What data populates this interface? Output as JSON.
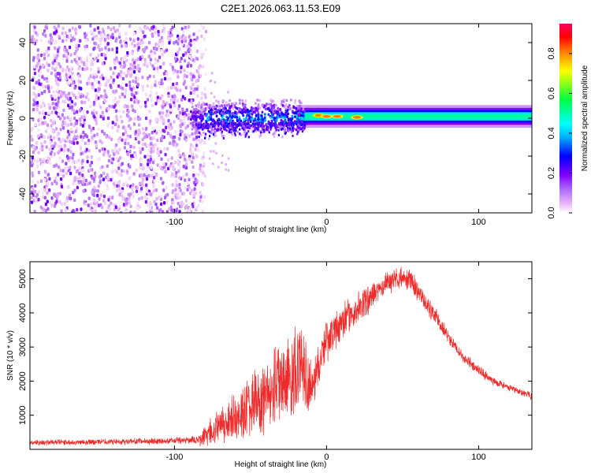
{
  "figure_title": "C2E1.2026.063.11.53.E09",
  "chart_data": [
    {
      "type": "heatmap",
      "title": "C2E1.2026.063.11.53.E09",
      "xlabel": "Height of straight line (km)",
      "ylabel": "Frequency (Hz)",
      "xlim": [
        -195,
        135
      ],
      "ylim": [
        -50,
        50
      ],
      "x_ticks": [
        -100,
        0,
        100
      ],
      "x_tick_labels": [
        "-100",
        "0",
        "100"
      ],
      "y_ticks": [
        -40,
        -20,
        0,
        20,
        40
      ],
      "y_tick_labels": [
        "-40",
        "-20",
        "0",
        "20",
        "40"
      ],
      "colorbar": {
        "label": "Normalized spectral amplitude",
        "range": [
          0.0,
          0.95
        ],
        "ticks": [
          0.0,
          0.2,
          0.4,
          0.6,
          0.8
        ],
        "tick_labels": [
          "0.0",
          "0.2",
          "0.4",
          "0.6",
          "0.8"
        ],
        "colors": [
          "#ffffff",
          "#e8b4f8",
          "#b070ff",
          "#7f00ff",
          "#0000ff",
          "#00ffff",
          "#00ff60",
          "#ffff00",
          "#ff8000",
          "#ff0000",
          "#ff0060"
        ]
      },
      "regions": [
        {
          "name": "noise",
          "x_range": [
            -195,
            -80
          ],
          "freq_range": [
            -50,
            50
          ],
          "amplitude": 0.12
        },
        {
          "name": "transition",
          "x_range": [
            -90,
            -15
          ],
          "freq_range": [
            -10,
            8
          ],
          "amplitude": 0.4
        },
        {
          "name": "signal",
          "x_range": [
            -15,
            135
          ],
          "freq_center": 1,
          "freq_halfwidth": 3,
          "amplitude": 0.5
        },
        {
          "name": "peaks",
          "x": [
            -5,
            0,
            7,
            20
          ],
          "freq": [
            1.5,
            1,
            1,
            0.5
          ],
          "amplitude": 0.85
        }
      ]
    },
    {
      "type": "line",
      "xlabel": "Height of straight line (km)",
      "ylabel": "SNR (10 * v/v)",
      "xlim": [
        -195,
        135
      ],
      "ylim": [
        0,
        5500
      ],
      "x_ticks": [
        -100,
        0,
        100
      ],
      "x_tick_labels": [
        "-100",
        "0",
        "100"
      ],
      "y_ticks": [
        1000,
        2000,
        3000,
        4000,
        5000
      ],
      "y_tick_labels": [
        "1000",
        "2000",
        "3000",
        "4000",
        "5000"
      ],
      "series": [
        {
          "name": "SNR",
          "color": "#ee2a2a",
          "envelope_x": [
            -195,
            -150,
            -100,
            -85,
            -80,
            -70,
            -60,
            -50,
            -40,
            -30,
            -20,
            -13,
            -10,
            0,
            10,
            20,
            30,
            40,
            45,
            55,
            60,
            70,
            80,
            90,
            100,
            110,
            120,
            130,
            135
          ],
          "envelope_y": [
            200,
            220,
            250,
            280,
            400,
            700,
            1000,
            1300,
            1700,
            2100,
            2500,
            2400,
            1800,
            3200,
            3700,
            4100,
            4500,
            4900,
            5000,
            5000,
            4600,
            4000,
            3300,
            2700,
            2300,
            2000,
            1800,
            1650,
            1550
          ],
          "noise_amplitude": [
            80,
            80,
            90,
            100,
            300,
            500,
            700,
            800,
            900,
            1100,
            1300,
            1300,
            600,
            600,
            500,
            450,
            400,
            350,
            300,
            300,
            300,
            250,
            200,
            180,
            150,
            120,
            100,
            100,
            100
          ]
        }
      ]
    }
  ]
}
